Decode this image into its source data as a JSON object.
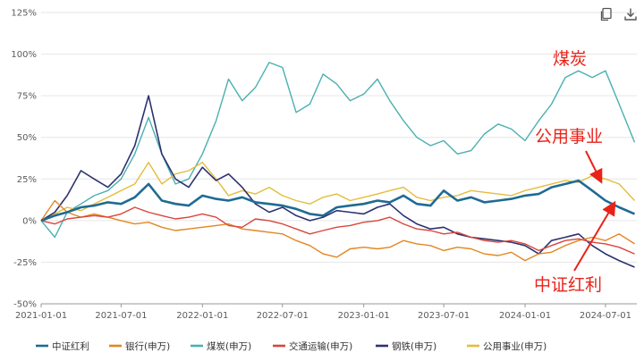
{
  "toolbar": {
    "copy_icon": "copy-icon",
    "download_icon": "download-icon"
  },
  "chart_data": {
    "type": "line",
    "ylim": [
      -50,
      125
    ],
    "yticks": [
      -50,
      -25,
      0,
      25,
      50,
      75,
      100,
      125
    ],
    "ytick_labels": [
      "-50%",
      "-25%",
      "0%",
      "25%",
      "50%",
      "75%",
      "100%",
      "125%"
    ],
    "xlim": [
      "2021-01-01",
      "2024-09-10"
    ],
    "xtick_labels": [
      "2021-01-01",
      "2021-07-01",
      "2022-01-01",
      "2022-07-01",
      "2023-01-01",
      "2023-07-01",
      "2024-01-01",
      "2024-07-01"
    ],
    "grid": "horizontal",
    "legend_position": "bottom",
    "series": [
      {
        "name": "中证红利",
        "color": "#1f6b94",
        "width": 2.6,
        "x": [
          "2021-01-01",
          "2021-02-01",
          "2021-03-01",
          "2021-04-01",
          "2021-05-01",
          "2021-06-01",
          "2021-07-01",
          "2021-08-01",
          "2021-09-01",
          "2021-10-01",
          "2021-11-01",
          "2021-12-01",
          "2022-01-01",
          "2022-02-01",
          "2022-03-01",
          "2022-04-01",
          "2022-05-01",
          "2022-06-01",
          "2022-07-01",
          "2022-08-01",
          "2022-09-01",
          "2022-10-01",
          "2022-11-01",
          "2022-12-01",
          "2023-01-01",
          "2023-02-01",
          "2023-03-01",
          "2023-04-01",
          "2023-05-01",
          "2023-06-01",
          "2023-07-01",
          "2023-08-01",
          "2023-09-01",
          "2023-10-01",
          "2023-11-01",
          "2023-12-01",
          "2024-01-01",
          "2024-02-01",
          "2024-03-01",
          "2024-04-01",
          "2024-05-01",
          "2024-06-01",
          "2024-07-01",
          "2024-08-01",
          "2024-09-05"
        ],
        "values": [
          0,
          3,
          5,
          8,
          9,
          11,
          10,
          14,
          22,
          12,
          10,
          9,
          15,
          13,
          12,
          14,
          11,
          10,
          9,
          7,
          4,
          3,
          8,
          9,
          10,
          12,
          11,
          15,
          10,
          9,
          18,
          12,
          14,
          11,
          12,
          13,
          15,
          16,
          20,
          22,
          24,
          18,
          12,
          8,
          4
        ]
      },
      {
        "name": "银行(申万)",
        "color": "#e3861f",
        "width": 1.4,
        "x": [
          "2021-01-01",
          "2021-02-01",
          "2021-03-01",
          "2021-04-01",
          "2021-05-01",
          "2021-06-01",
          "2021-07-01",
          "2021-08-01",
          "2021-09-01",
          "2021-10-01",
          "2021-11-01",
          "2021-12-01",
          "2022-01-01",
          "2022-02-01",
          "2022-03-01",
          "2022-04-01",
          "2022-05-01",
          "2022-06-01",
          "2022-07-01",
          "2022-08-01",
          "2022-09-01",
          "2022-10-01",
          "2022-11-01",
          "2022-12-01",
          "2023-01-01",
          "2023-02-01",
          "2023-03-01",
          "2023-04-01",
          "2023-05-01",
          "2023-06-01",
          "2023-07-01",
          "2023-08-01",
          "2023-09-01",
          "2023-10-01",
          "2023-11-01",
          "2023-12-01",
          "2024-01-01",
          "2024-02-01",
          "2024-03-01",
          "2024-04-01",
          "2024-05-01",
          "2024-06-01",
          "2024-07-01",
          "2024-08-01",
          "2024-09-05"
        ],
        "values": [
          0,
          12,
          5,
          2,
          4,
          2,
          0,
          -2,
          -1,
          -4,
          -6,
          -5,
          -4,
          -3,
          -2,
          -5,
          -6,
          -7,
          -8,
          -12,
          -15,
          -20,
          -22,
          -17,
          -16,
          -17,
          -16,
          -12,
          -14,
          -15,
          -18,
          -16,
          -17,
          -20,
          -21,
          -19,
          -24,
          -20,
          -19,
          -15,
          -12,
          -10,
          -12,
          -8,
          -14
        ]
      },
      {
        "name": "煤炭(申万)",
        "color": "#4ab0b0",
        "width": 1.4,
        "x": [
          "2021-01-01",
          "2021-02-01",
          "2021-03-01",
          "2021-04-01",
          "2021-05-01",
          "2021-06-01",
          "2021-07-01",
          "2021-08-01",
          "2021-09-01",
          "2021-10-01",
          "2021-11-01",
          "2021-12-01",
          "2022-01-01",
          "2022-02-01",
          "2022-03-01",
          "2022-04-01",
          "2022-05-01",
          "2022-06-01",
          "2022-07-01",
          "2022-08-01",
          "2022-09-01",
          "2022-10-01",
          "2022-11-01",
          "2022-12-01",
          "2023-01-01",
          "2023-02-01",
          "2023-03-01",
          "2023-04-01",
          "2023-05-01",
          "2023-06-01",
          "2023-07-01",
          "2023-08-01",
          "2023-09-01",
          "2023-10-01",
          "2023-11-01",
          "2023-12-01",
          "2024-01-01",
          "2024-02-01",
          "2024-03-01",
          "2024-04-01",
          "2024-05-01",
          "2024-06-01",
          "2024-07-01",
          "2024-08-01",
          "2024-09-05"
        ],
        "values": [
          0,
          -10,
          5,
          10,
          15,
          18,
          25,
          40,
          62,
          40,
          22,
          25,
          40,
          60,
          85,
          72,
          80,
          95,
          92,
          65,
          70,
          88,
          82,
          72,
          76,
          85,
          72,
          60,
          50,
          45,
          48,
          40,
          42,
          52,
          58,
          55,
          48,
          60,
          70,
          86,
          90,
          86,
          90,
          70,
          47
        ]
      },
      {
        "name": "交通运输(申万)",
        "color": "#d9453d",
        "width": 1.4,
        "x": [
          "2021-01-01",
          "2021-02-01",
          "2021-03-01",
          "2021-04-01",
          "2021-05-01",
          "2021-06-01",
          "2021-07-01",
          "2021-08-01",
          "2021-09-01",
          "2021-10-01",
          "2021-11-01",
          "2021-12-01",
          "2022-01-01",
          "2022-02-01",
          "2022-03-01",
          "2022-04-01",
          "2022-05-01",
          "2022-06-01",
          "2022-07-01",
          "2022-08-01",
          "2022-09-01",
          "2022-10-01",
          "2022-11-01",
          "2022-12-01",
          "2023-01-01",
          "2023-02-01",
          "2023-03-01",
          "2023-04-01",
          "2023-05-01",
          "2023-06-01",
          "2023-07-01",
          "2023-08-01",
          "2023-09-01",
          "2023-10-01",
          "2023-11-01",
          "2023-12-01",
          "2024-01-01",
          "2024-02-01",
          "2024-03-01",
          "2024-04-01",
          "2024-05-01",
          "2024-06-01",
          "2024-07-01",
          "2024-08-01",
          "2024-09-05"
        ],
        "values": [
          0,
          -2,
          1,
          2,
          3,
          2,
          4,
          8,
          5,
          3,
          1,
          2,
          4,
          2,
          -3,
          -4,
          1,
          0,
          -2,
          -5,
          -8,
          -6,
          -4,
          -3,
          -1,
          0,
          2,
          -2,
          -5,
          -6,
          -8,
          -7,
          -10,
          -12,
          -13,
          -12,
          -14,
          -18,
          -15,
          -12,
          -11,
          -13,
          -14,
          -16,
          -20
        ]
      },
      {
        "name": "钢铁(申万)",
        "color": "#2d3270",
        "width": 1.6,
        "x": [
          "2021-01-01",
          "2021-02-01",
          "2021-03-01",
          "2021-04-01",
          "2021-05-01",
          "2021-06-01",
          "2021-07-01",
          "2021-08-01",
          "2021-09-01",
          "2021-10-01",
          "2021-11-01",
          "2021-12-01",
          "2022-01-01",
          "2022-02-01",
          "2022-03-01",
          "2022-04-01",
          "2022-05-01",
          "2022-06-01",
          "2022-07-01",
          "2022-08-01",
          "2022-09-01",
          "2022-10-01",
          "2022-11-01",
          "2022-12-01",
          "2023-01-01",
          "2023-02-01",
          "2023-03-01",
          "2023-04-01",
          "2023-05-01",
          "2023-06-01",
          "2023-07-01",
          "2023-08-01",
          "2023-09-01",
          "2023-10-01",
          "2023-11-01",
          "2023-12-01",
          "2024-01-01",
          "2024-02-01",
          "2024-03-01",
          "2024-04-01",
          "2024-05-01",
          "2024-06-01",
          "2024-07-01",
          "2024-08-01",
          "2024-09-05"
        ],
        "values": [
          0,
          5,
          15,
          30,
          25,
          20,
          28,
          45,
          75,
          40,
          25,
          20,
          32,
          24,
          28,
          20,
          10,
          5,
          8,
          3,
          0,
          2,
          6,
          5,
          4,
          8,
          10,
          3,
          -2,
          -5,
          -4,
          -8,
          -10,
          -11,
          -12,
          -13,
          -15,
          -20,
          -12,
          -10,
          -8,
          -15,
          -20,
          -24,
          -28
        ]
      },
      {
        "name": "公用事业(申万)",
        "color": "#e3bd3c",
        "width": 1.4,
        "x": [
          "2021-01-01",
          "2021-02-01",
          "2021-03-01",
          "2021-04-01",
          "2021-05-01",
          "2021-06-01",
          "2021-07-01",
          "2021-08-01",
          "2021-09-01",
          "2021-10-01",
          "2021-11-01",
          "2021-12-01",
          "2022-01-01",
          "2022-02-01",
          "2022-03-01",
          "2022-04-01",
          "2022-05-01",
          "2022-06-01",
          "2022-07-01",
          "2022-08-01",
          "2022-09-01",
          "2022-10-01",
          "2022-11-01",
          "2022-12-01",
          "2023-01-01",
          "2023-02-01",
          "2023-03-01",
          "2023-04-01",
          "2023-05-01",
          "2023-06-01",
          "2023-07-01",
          "2023-08-01",
          "2023-09-01",
          "2023-10-01",
          "2023-11-01",
          "2023-12-01",
          "2024-01-01",
          "2024-02-01",
          "2024-03-01",
          "2024-04-01",
          "2024-05-01",
          "2024-06-01",
          "2024-07-01",
          "2024-08-01",
          "2024-09-05"
        ],
        "values": [
          0,
          4,
          8,
          6,
          10,
          14,
          18,
          22,
          35,
          22,
          28,
          30,
          35,
          25,
          15,
          18,
          16,
          20,
          15,
          12,
          10,
          14,
          16,
          12,
          14,
          16,
          18,
          20,
          14,
          12,
          14,
          15,
          18,
          17,
          16,
          15,
          18,
          20,
          22,
          24,
          23,
          27,
          25,
          22,
          12
        ]
      }
    ],
    "annotations": [
      {
        "text": "煤炭",
        "target_series": "煤炭(申万)"
      },
      {
        "text": "公用事业",
        "target_series": "公用事业(申万)",
        "arrow_to": {
          "x": "2024-06-20",
          "y": 24
        }
      },
      {
        "text": "中证红利",
        "target_series": "中证红利",
        "arrow_to": {
          "x": "2024-07-20",
          "y": 10
        }
      }
    ]
  }
}
